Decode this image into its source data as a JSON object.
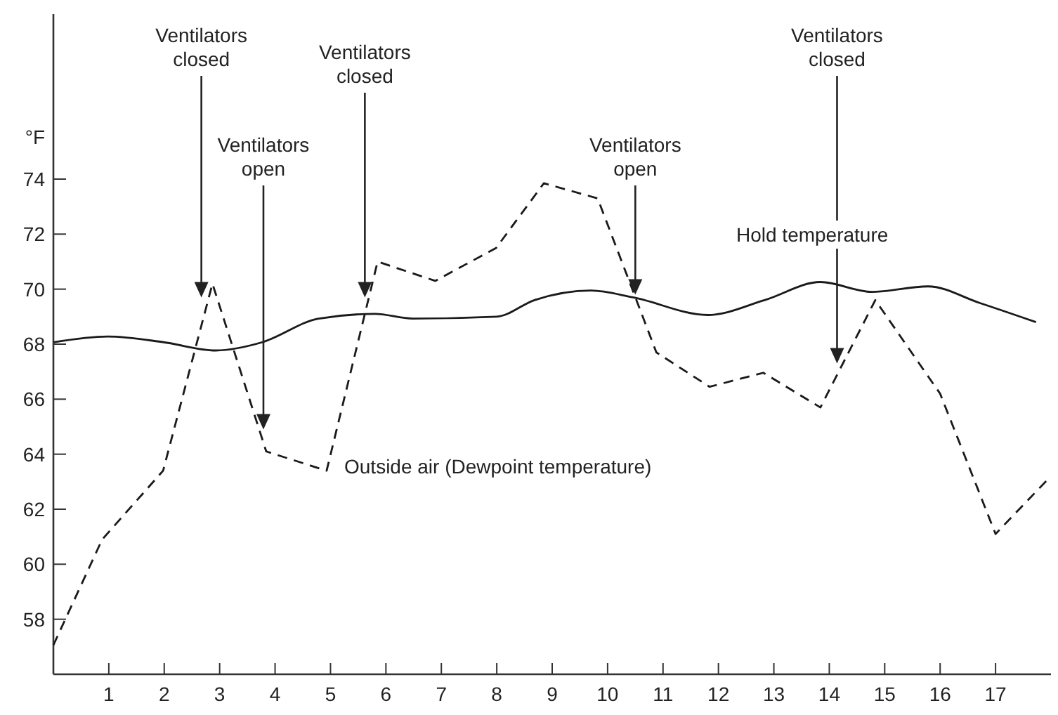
{
  "chart_data": {
    "type": "line",
    "ylabel": "°F",
    "xlim": [
      0,
      18
    ],
    "xticks": [
      1,
      2,
      3,
      4,
      5,
      6,
      7,
      8,
      9,
      10,
      11,
      12,
      13,
      14,
      15,
      16,
      17
    ],
    "ylim": [
      56,
      80
    ],
    "yticks": [
      58,
      60,
      62,
      64,
      66,
      68,
      70,
      72,
      74
    ],
    "grid": false,
    "series": [
      {
        "color": "#1a1a1a",
        "line_style": "solid",
        "x": [
          0,
          0.98,
          1.99,
          2.93,
          3.77,
          4.79,
          5.8,
          6.48,
          8.0,
          8.68,
          9.7,
          10.46,
          11.81,
          12.83,
          13.84,
          14.77,
          15.78,
          16.71,
          17.73
        ],
        "values": [
          68.07,
          68.28,
          68.07,
          67.77,
          68.07,
          68.93,
          69.1,
          68.93,
          69.0,
          69.6,
          69.95,
          69.7,
          69.06,
          69.6,
          70.26,
          69.9,
          70.1,
          69.5,
          68.8
        ]
      },
      {
        "color": "#1a1a1a",
        "line_style": "dashed",
        "x": [
          0,
          0.88,
          1.98,
          2.87,
          3.84,
          4.93,
          5.85,
          6.89,
          7.99,
          8.85,
          9.82,
          10.88,
          11.84,
          12.81,
          13.84,
          14.83,
          16.0,
          17.0,
          17.95
        ],
        "values": [
          57.06,
          60.9,
          63.4,
          70.2,
          64.1,
          63.4,
          71.0,
          70.3,
          71.5,
          73.85,
          73.3,
          67.7,
          66.45,
          66.96,
          65.7,
          69.6,
          66.2,
          61.1,
          63.1
        ]
      }
    ],
    "annotations": [
      {
        "text": "Ventilators\nclosed",
        "x": 2.67,
        "y": 69.7
      },
      {
        "text": "Ventilators\nopen",
        "x": 3.79,
        "y": 64.9
      },
      {
        "text": "Ventilators\nclosed",
        "x": 5.62,
        "y": 69.7
      },
      {
        "text": "Ventilators\nopen",
        "x": 10.5,
        "y": 69.8
      },
      {
        "text": "Ventilators\nclosed",
        "x": 14.14,
        "y": 67.3
      },
      "Outside air (Dewpoint temperature)",
      "Hold temperature"
    ]
  }
}
